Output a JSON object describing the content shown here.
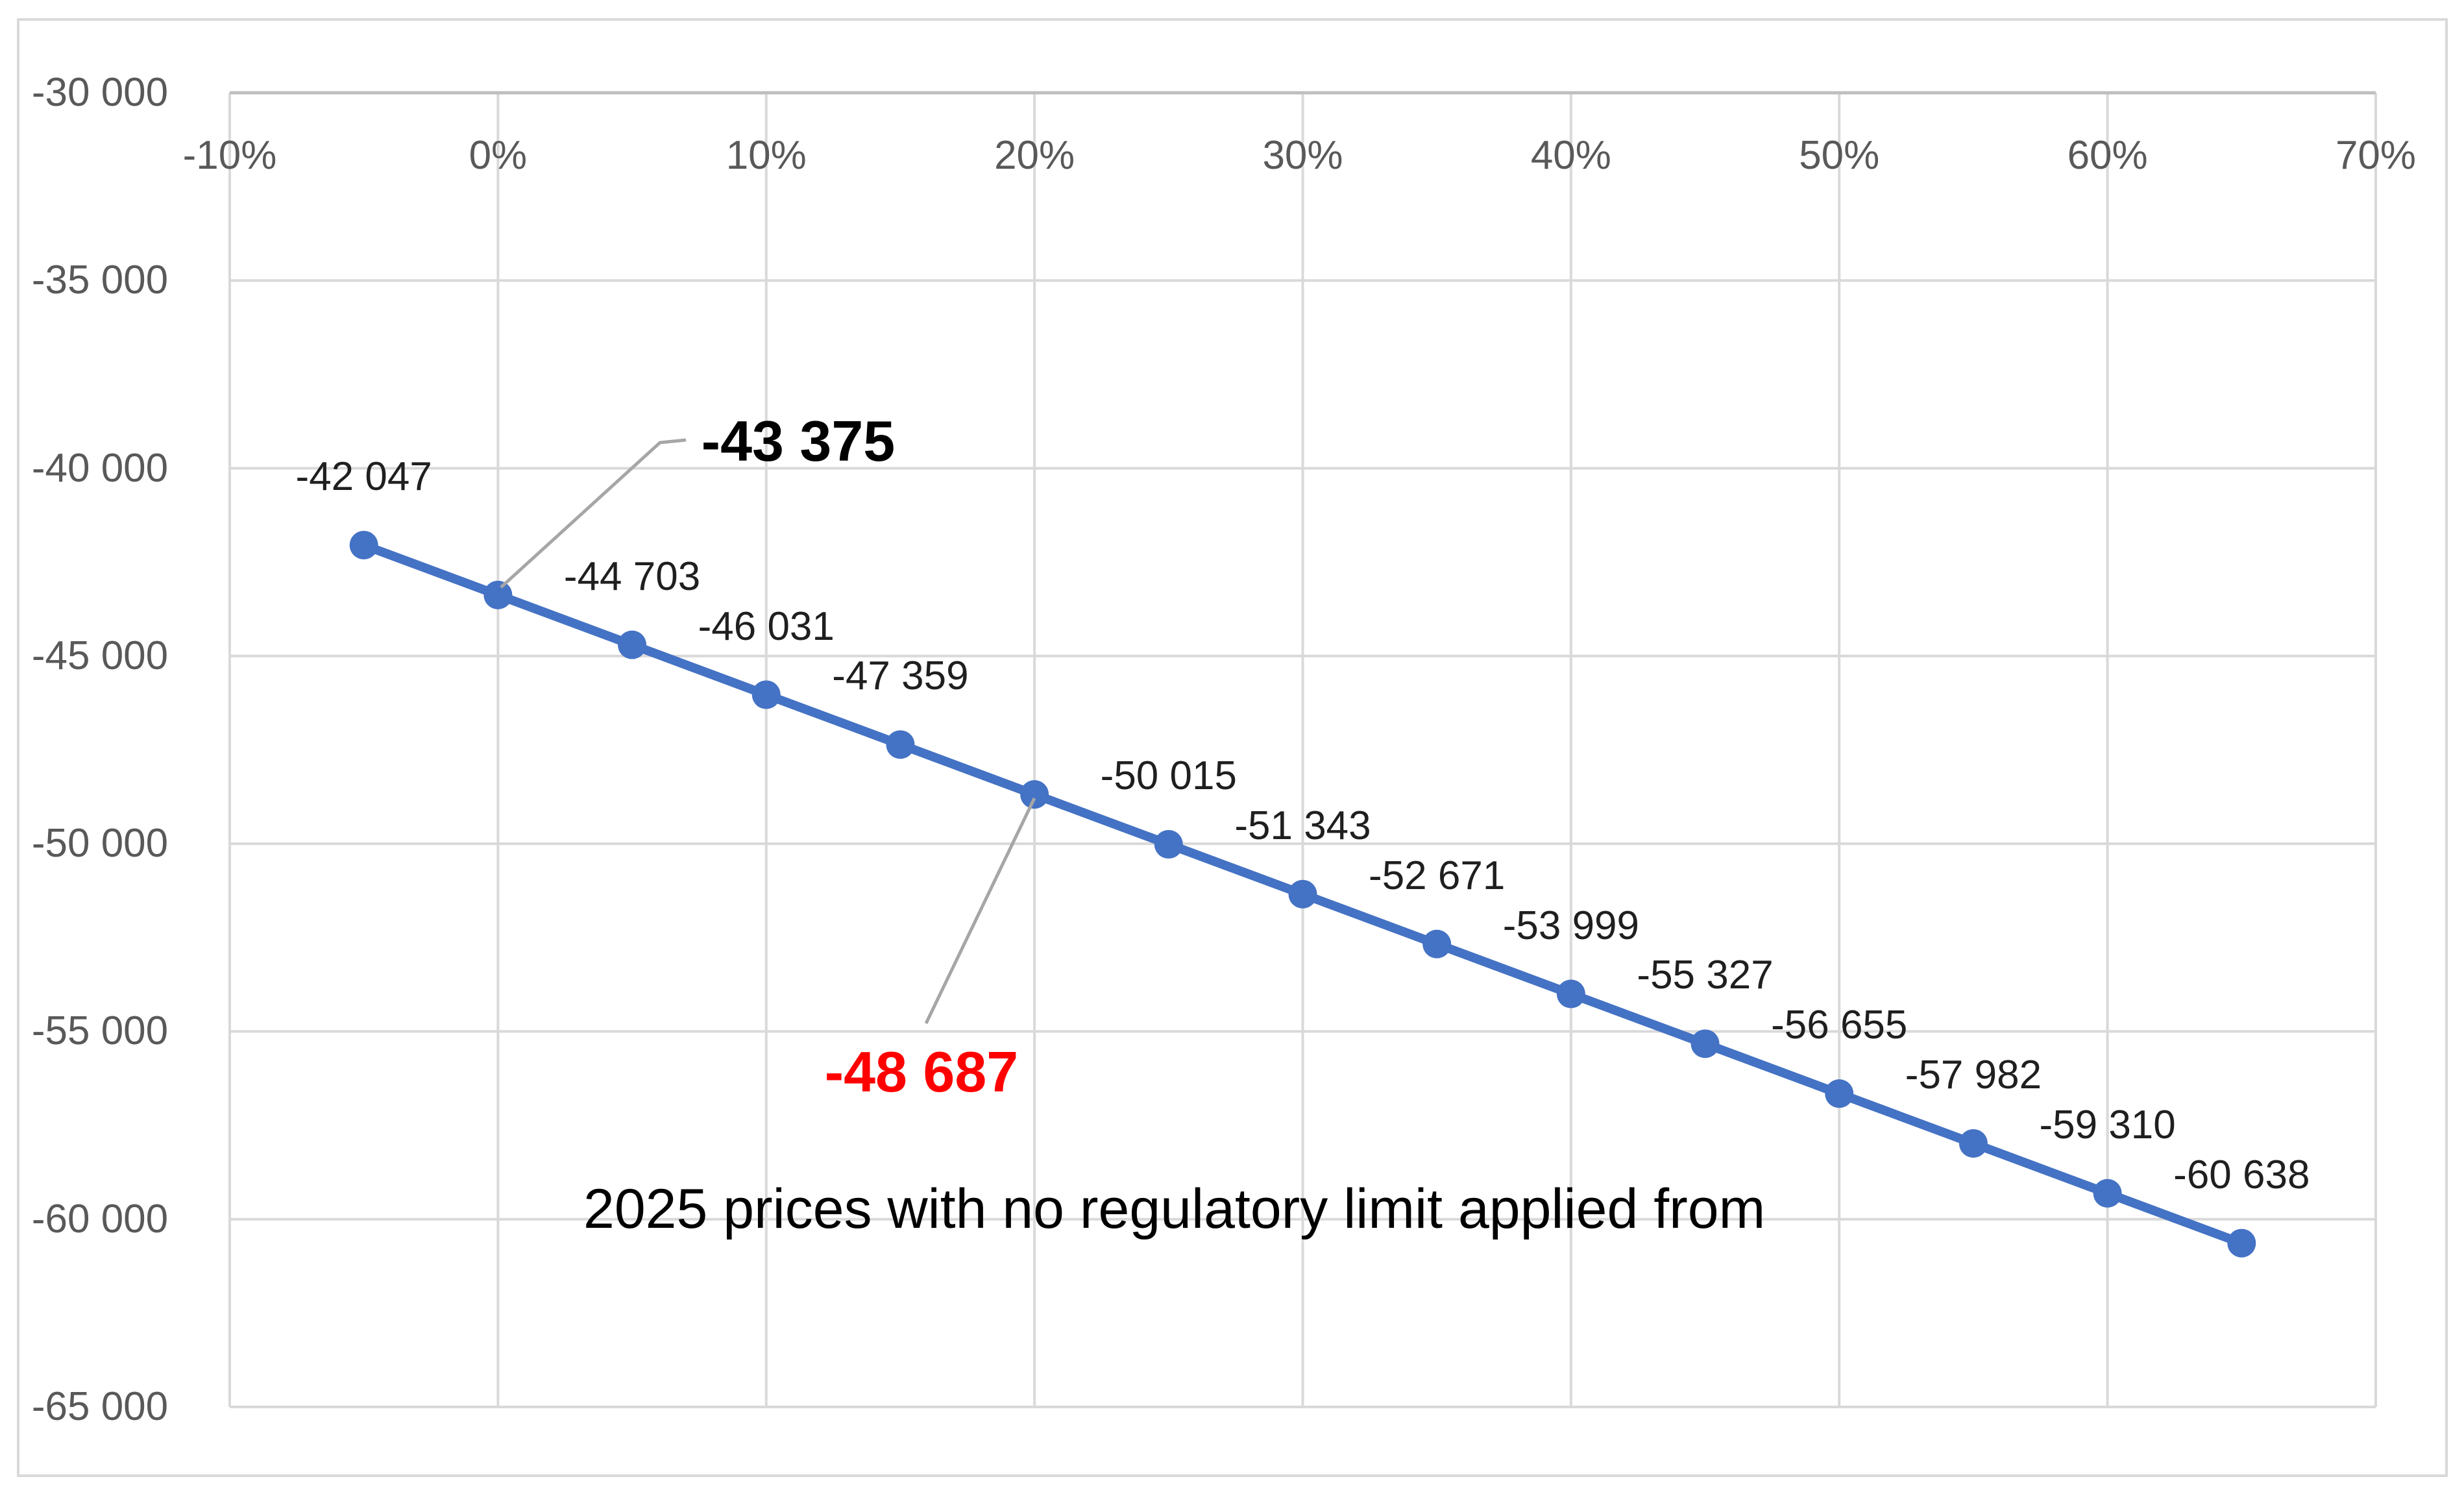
{
  "figure": {
    "background": "#FFFFFF",
    "border_color": "#D9D9D9"
  },
  "chart_data": {
    "type": "line",
    "title": "",
    "legend_position": "none",
    "grid": true,
    "xlim": [
      -10,
      70
    ],
    "ylim": [
      -65000,
      -30000
    ],
    "x_ticks": [
      {
        "value": -10,
        "label": "-10%"
      },
      {
        "value": 0,
        "label": "0%"
      },
      {
        "value": 10,
        "label": "10%"
      },
      {
        "value": 20,
        "label": "20%"
      },
      {
        "value": 30,
        "label": "30%"
      },
      {
        "value": 40,
        "label": "40%"
      },
      {
        "value": 50,
        "label": "50%"
      },
      {
        "value": 60,
        "label": "60%"
      },
      {
        "value": 70,
        "label": "70%"
      }
    ],
    "y_ticks": [
      {
        "value": -30000,
        "label": "-30 000"
      },
      {
        "value": -35000,
        "label": "-35 000"
      },
      {
        "value": -40000,
        "label": "-40 000"
      },
      {
        "value": -45000,
        "label": "-45 000"
      },
      {
        "value": -50000,
        "label": "-50 000"
      },
      {
        "value": -55000,
        "label": "-55 000"
      },
      {
        "value": -60000,
        "label": "-60 000"
      },
      {
        "value": -65000,
        "label": "-65 000"
      }
    ],
    "series": [
      {
        "color": "#4472C4",
        "marker": "circle",
        "x_percent": [
          -5,
          0,
          5,
          10,
          15,
          20,
          25,
          30,
          35,
          40,
          45,
          50,
          55,
          60,
          65
        ],
        "values": [
          -42047,
          -43375,
          -44703,
          -46031,
          -47359,
          -48687,
          -50015,
          -51343,
          -52671,
          -53999,
          -55327,
          -56655,
          -57982,
          -59310,
          -60638
        ],
        "point_labels": [
          "-42 047",
          "-43 375",
          "-44 703",
          "-46 031",
          "-47 359",
          "-48 687",
          "-50 015",
          "-51 343",
          "-52 671",
          "-53 999",
          "-55 327",
          "-56 655",
          "-57 982",
          "-59 310",
          "-60 638"
        ]
      }
    ],
    "callouts": [
      {
        "point_index": 1,
        "label": "-43 375",
        "color": "#000000",
        "bold": true
      },
      {
        "point_index": 5,
        "label": "-48 687",
        "color": "#FF0000",
        "bold": true
      }
    ],
    "annotation": "2025 prices with no regulatory limit applied from",
    "colors": {
      "series": "#4472C4",
      "gridline": "#D9D9D9",
      "axis_line": "#BFBFBF",
      "tick_label": "#595959",
      "data_label": "#1f1f1f",
      "leader_line": "#A6A6A6",
      "callout_red": "#FF0000",
      "callout_black": "#000000"
    }
  }
}
